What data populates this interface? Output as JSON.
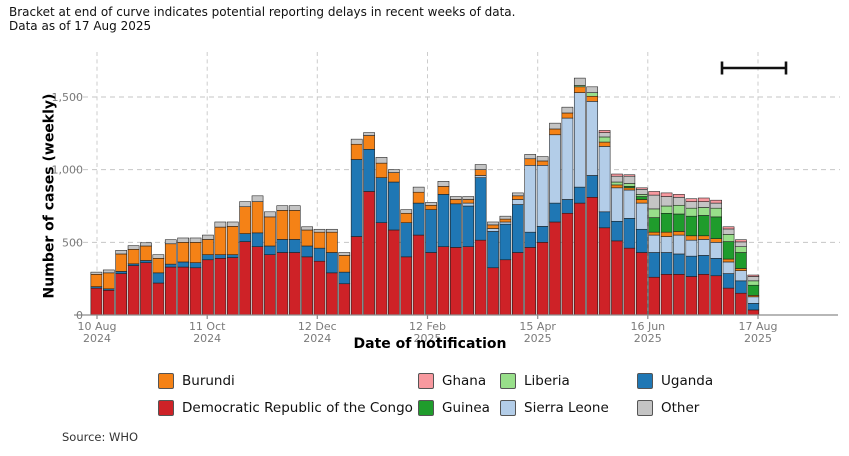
{
  "header": {
    "line1": "Bracket at end of curve indicates potential reporting delays in recent weeks of data.",
    "line2": "Data as of 17 Aug 2025"
  },
  "source": "Source: WHO",
  "legend": {
    "items": [
      {
        "label": "Burundi",
        "color": "#F58216"
      },
      {
        "label": "Ghana",
        "color": "#F8999F"
      },
      {
        "label": "Liberia",
        "color": "#98DF8A"
      },
      {
        "label": "Uganda",
        "color": "#1F77B4"
      },
      {
        "label": "Democratic Republic of the Congo",
        "color": "#CE2227"
      },
      {
        "label": "Guinea",
        "color": "#1F9C2C"
      },
      {
        "label": "Sierra Leone",
        "color": "#B3CDE8"
      },
      {
        "label": "Other",
        "color": "#C4C4C4"
      }
    ]
  },
  "chart_data": {
    "type": "bar",
    "stacked": true,
    "title": "",
    "xlabel": "Date of notification",
    "ylabel": "Number of cases (weekly)",
    "ylim": [
      0,
      1700
    ],
    "y_ticks": [
      0,
      500,
      1000,
      1500
    ],
    "y_tick_labels": [
      "0",
      "500",
      "1,000",
      "1,500"
    ],
    "grid": "dashed",
    "legend_position": "bottom",
    "n_weeks": 54,
    "x_ticks": [
      {
        "line1": "10 Aug",
        "line2": "2024"
      },
      {
        "line1": "11 Oct",
        "line2": "2024"
      },
      {
        "line1": "12 Dec",
        "line2": "2024"
      },
      {
        "line1": "12 Feb",
        "line2": "2025"
      },
      {
        "line1": "15 Apr",
        "line2": "2025"
      },
      {
        "line1": "16 Jun",
        "line2": "2025"
      },
      {
        "line1": "17 Aug",
        "line2": "2025"
      }
    ],
    "annotation": {
      "type": "bracket",
      "meaning": "potential reporting delays in recent weeks of data",
      "covers_last_weeks": 5
    },
    "stack_order_bottom_to_top": [
      "Democratic Republic of the Congo",
      "Uganda",
      "Sierra Leone",
      "Burundi",
      "Guinea",
      "Liberia",
      "Other",
      "Ghana"
    ],
    "series": [
      {
        "name": "Burundi",
        "color": "#F58216",
        "values": [
          85,
          110,
          120,
          100,
          100,
          100,
          140,
          135,
          140,
          105,
          190,
          195,
          185,
          215,
          200,
          200,
          200,
          110,
          110,
          140,
          115,
          105,
          95,
          100,
          65,
          65,
          75,
          30,
          55,
          30,
          25,
          40,
          25,
          20,
          25,
          45,
          30,
          40,
          35,
          40,
          35,
          30,
          20,
          15,
          25,
          20,
          30,
          25,
          30,
          25,
          25,
          20,
          15,
          10
        ]
      },
      {
        "name": "Democratic Republic of the Congo",
        "color": "#CE2227",
        "values": [
          185,
          170,
          285,
          340,
          360,
          220,
          330,
          330,
          325,
          380,
          390,
          395,
          505,
          470,
          415,
          430,
          430,
          400,
          370,
          290,
          215,
          540,
          850,
          635,
          585,
          400,
          550,
          430,
          470,
          465,
          470,
          515,
          325,
          380,
          430,
          465,
          500,
          640,
          700,
          770,
          810,
          600,
          510,
          460,
          430,
          260,
          280,
          280,
          265,
          280,
          270,
          185,
          150,
          35
        ]
      },
      {
        "name": "Ghana",
        "color": "#F8999F",
        "values": [
          0,
          0,
          0,
          0,
          0,
          0,
          0,
          0,
          0,
          0,
          0,
          0,
          0,
          0,
          0,
          0,
          0,
          0,
          0,
          0,
          0,
          0,
          0,
          0,
          0,
          0,
          0,
          0,
          0,
          0,
          0,
          0,
          0,
          0,
          0,
          0,
          0,
          0,
          0,
          0,
          0,
          15,
          15,
          10,
          10,
          25,
          25,
          20,
          20,
          25,
          20,
          15,
          15,
          10
        ]
      },
      {
        "name": "Guinea",
        "color": "#1F9C2C",
        "values": [
          0,
          0,
          0,
          0,
          0,
          0,
          0,
          0,
          0,
          0,
          0,
          0,
          0,
          0,
          0,
          0,
          0,
          0,
          0,
          0,
          0,
          0,
          0,
          0,
          0,
          0,
          0,
          0,
          0,
          0,
          0,
          0,
          0,
          0,
          0,
          0,
          0,
          0,
          0,
          0,
          0,
          0,
          0,
          10,
          20,
          100,
          130,
          120,
          135,
          140,
          150,
          120,
          110,
          70
        ]
      },
      {
        "name": "Liberia",
        "color": "#98DF8A",
        "values": [
          0,
          0,
          0,
          0,
          0,
          0,
          0,
          0,
          0,
          0,
          0,
          0,
          0,
          0,
          0,
          0,
          0,
          0,
          0,
          0,
          0,
          0,
          0,
          0,
          0,
          0,
          0,
          0,
          0,
          0,
          0,
          0,
          0,
          0,
          0,
          0,
          0,
          0,
          0,
          10,
          25,
          35,
          20,
          20,
          15,
          60,
          50,
          60,
          55,
          55,
          60,
          50,
          40,
          30
        ]
      },
      {
        "name": "Sierra Leone",
        "color": "#B3CDE8",
        "values": [
          0,
          0,
          0,
          0,
          0,
          0,
          0,
          0,
          0,
          0,
          0,
          0,
          0,
          0,
          0,
          0,
          0,
          0,
          0,
          0,
          0,
          0,
          0,
          0,
          0,
          0,
          0,
          0,
          0,
          0,
          20,
          15,
          20,
          15,
          35,
          460,
          420,
          470,
          560,
          650,
          510,
          450,
          230,
          195,
          180,
          120,
          110,
          130,
          110,
          110,
          110,
          80,
          70,
          45
        ]
      },
      {
        "name": "Uganda",
        "color": "#1F77B4",
        "values": [
          10,
          10,
          15,
          12,
          15,
          70,
          20,
          35,
          35,
          35,
          25,
          20,
          55,
          95,
          60,
          90,
          90,
          75,
          90,
          140,
          80,
          530,
          290,
          310,
          330,
          235,
          220,
          295,
          360,
          300,
          280,
          430,
          250,
          245,
          330,
          105,
          110,
          130,
          95,
          110,
          150,
          110,
          135,
          205,
          160,
          170,
          150,
          140,
          140,
          130,
          120,
          100,
          85,
          45
        ]
      },
      {
        "name": "Other",
        "color": "#C4C4C4",
        "values": [
          15,
          20,
          25,
          25,
          22,
          25,
          28,
          30,
          30,
          30,
          35,
          30,
          35,
          40,
          35,
          32,
          32,
          22,
          20,
          20,
          20,
          35,
          20,
          40,
          20,
          25,
          35,
          20,
          35,
          20,
          20,
          35,
          20,
          20,
          20,
          30,
          30,
          40,
          40,
          50,
          40,
          30,
          40,
          50,
          35,
          95,
          65,
          55,
          45,
          40,
          35,
          37,
          33,
          30
        ]
      }
    ]
  }
}
